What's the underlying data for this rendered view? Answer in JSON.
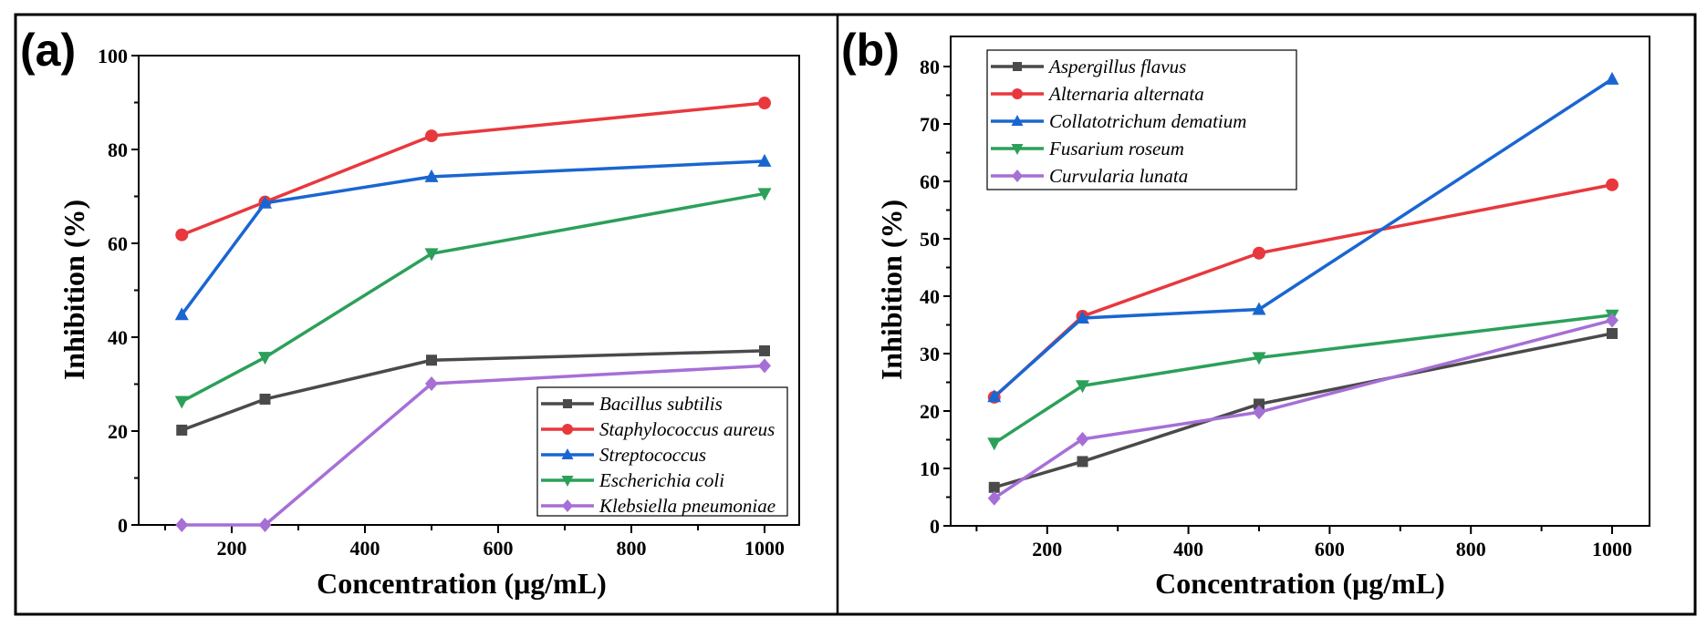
{
  "chart_data": [
    {
      "type": "line",
      "panel_label": "(a)",
      "title": "",
      "xlabel": "Concentration (μg/mL)",
      "ylabel": "Inhibition (%)",
      "x": [
        125,
        250,
        500,
        1000
      ],
      "xlim": [
        50,
        1060
      ],
      "ylim": [
        0,
        100
      ],
      "xticks": [
        200,
        400,
        600,
        800,
        1000
      ],
      "xtick_labels": [
        "200",
        "400",
        "600",
        "800",
        "1000"
      ],
      "yticks": [
        0,
        20,
        40,
        60,
        80,
        100
      ],
      "ytick_labels": [
        "0",
        "20",
        "40",
        "60",
        "80",
        "100"
      ],
      "grid": false,
      "legend_position": "bottom-right",
      "series": [
        {
          "name": "Bacillus subtilis",
          "color": "#4a4a4a",
          "marker": "square",
          "values": [
            20.2,
            26.8,
            35.1,
            37.1
          ]
        },
        {
          "name": "Staphylococcus aureus",
          "color": "#e8383d",
          "marker": "circle",
          "values": [
            61.8,
            68.8,
            82.9,
            89.9
          ]
        },
        {
          "name": "Streptococcus",
          "color": "#1a66d1",
          "marker": "triangle-up",
          "values": [
            44.8,
            68.6,
            74.2,
            77.5
          ]
        },
        {
          "name": "Escherichia coli",
          "color": "#2ca05a",
          "marker": "triangle-down",
          "values": [
            26.3,
            35.7,
            57.8,
            70.6
          ]
        },
        {
          "name": "Klebsiella pneumoniae",
          "color": "#a66fd6",
          "marker": "diamond",
          "values": [
            0,
            0,
            30.1,
            33.9
          ]
        }
      ]
    },
    {
      "type": "line",
      "panel_label": "(b)",
      "title": "",
      "xlabel": "Concentration (μg/mL)",
      "ylabel": "Inhibition (%)",
      "x": [
        125,
        250,
        500,
        1000
      ],
      "xlim": [
        50,
        1050
      ],
      "ylim": [
        0,
        85
      ],
      "xticks": [
        200,
        400,
        600,
        800,
        1000
      ],
      "xtick_labels": [
        "200",
        "400",
        "600",
        "800",
        "1000"
      ],
      "yticks": [
        0,
        10,
        20,
        30,
        40,
        50,
        60,
        70,
        80
      ],
      "ytick_labels": [
        "0",
        "10",
        "20",
        "30",
        "40",
        "50",
        "60",
        "70",
        "80"
      ],
      "grid": false,
      "legend_position": "top-left",
      "series": [
        {
          "name": "Aspergillus flavus",
          "color": "#4a4a4a",
          "marker": "square",
          "values": [
            6.7,
            11.2,
            21.2,
            33.5
          ]
        },
        {
          "name": "Alternaria alternata",
          "color": "#e8383d",
          "marker": "circle",
          "values": [
            22.4,
            36.5,
            47.5,
            59.4
          ]
        },
        {
          "name": "Collatotrichum dematium",
          "color": "#1a66d1",
          "marker": "triangle-up",
          "values": [
            22.5,
            36.2,
            37.7,
            77.8
          ]
        },
        {
          "name": "Fusarium roseum",
          "color": "#2ca05a",
          "marker": "triangle-down",
          "values": [
            14.4,
            24.4,
            29.3,
            36.7
          ]
        },
        {
          "name": "Curvularia lunata",
          "color": "#a66fd6",
          "marker": "diamond",
          "values": [
            4.8,
            15.1,
            19.8,
            35.8
          ]
        }
      ]
    }
  ]
}
